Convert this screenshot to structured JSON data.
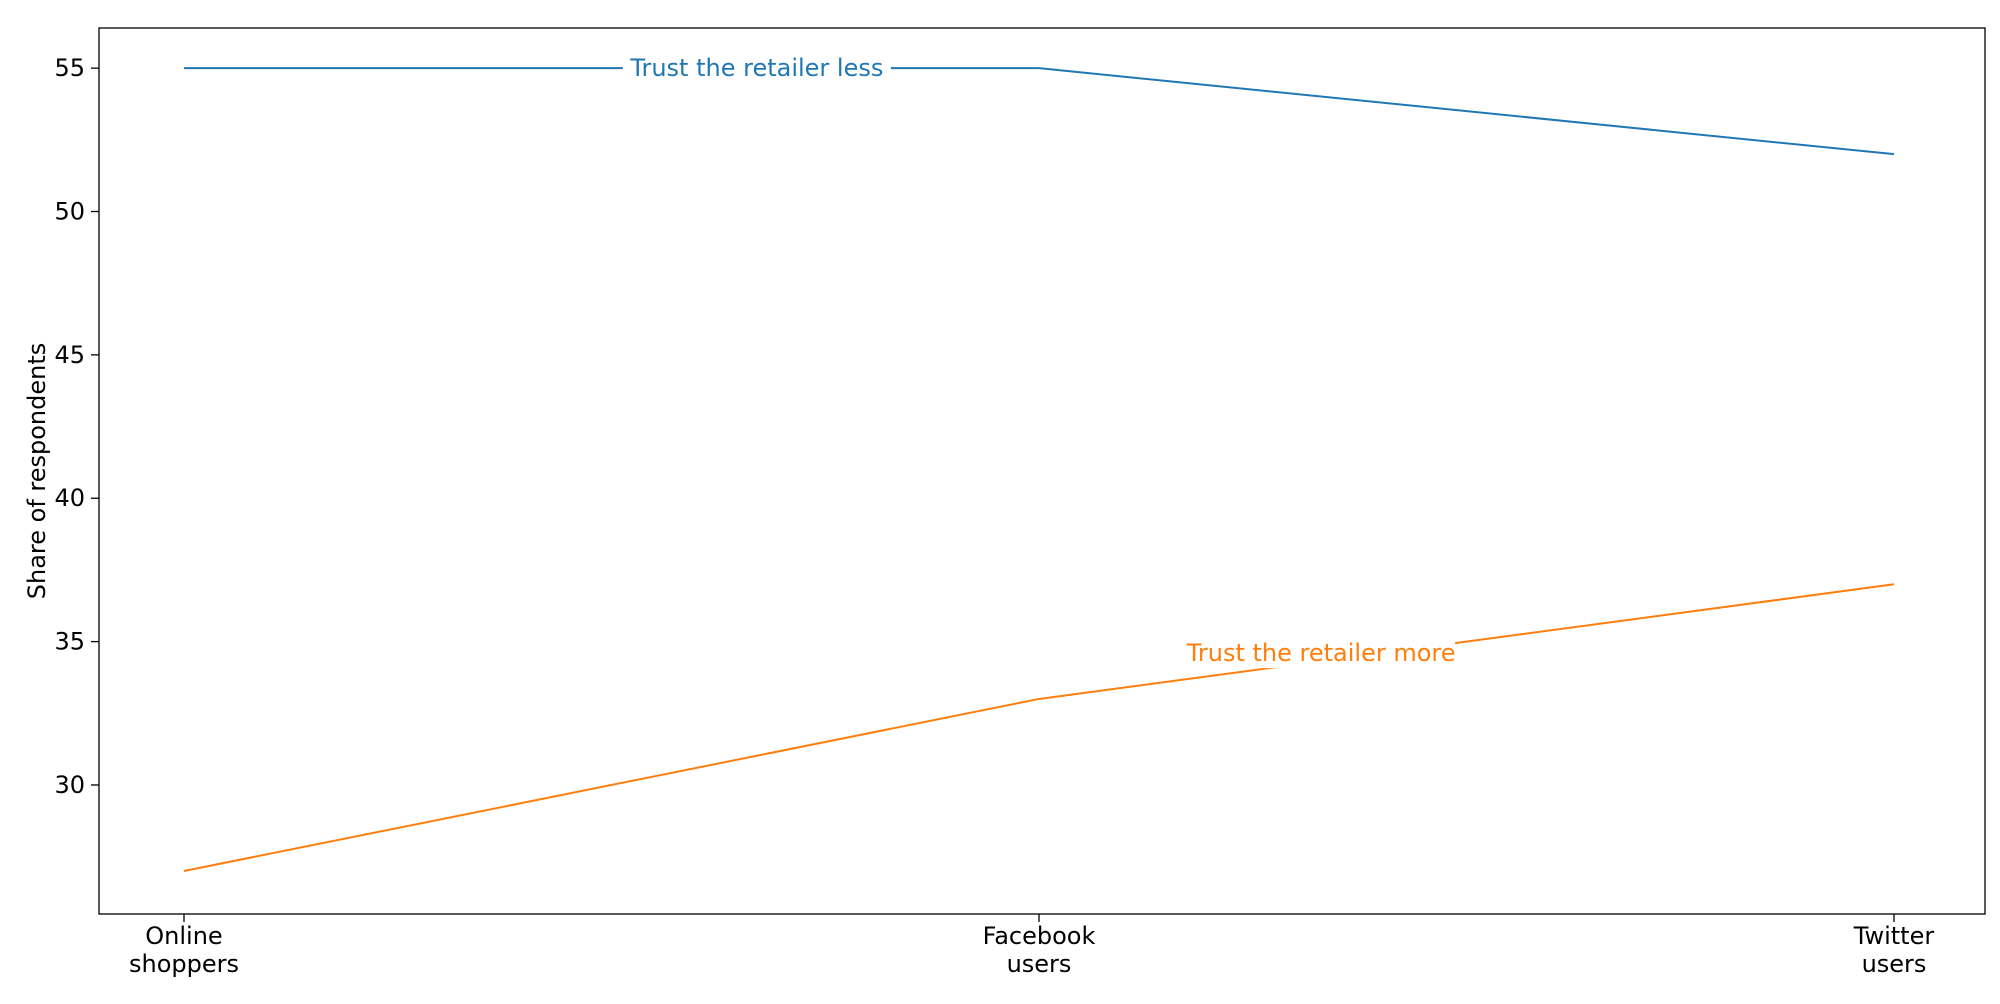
{
  "chart_data": {
    "type": "line",
    "title": "",
    "xlabel": "",
    "ylabel": "Share of respondents",
    "categories": [
      [
        "Online",
        "shoppers"
      ],
      [
        "Facebook",
        "users"
      ],
      [
        "Twitter",
        "users"
      ]
    ],
    "ylim": [
      25.5,
      56.4
    ],
    "yticks": [
      30,
      35,
      40,
      45,
      50,
      55
    ],
    "grid": false,
    "legend": "none",
    "series": [
      {
        "name": "Trust the retailer less",
        "color": "#1f77b4",
        "values": [
          55,
          55,
          52
        ]
      },
      {
        "name": "Trust the retailer more",
        "color": "#ff7f0e",
        "values": [
          27,
          33,
          37
        ]
      }
    ]
  }
}
